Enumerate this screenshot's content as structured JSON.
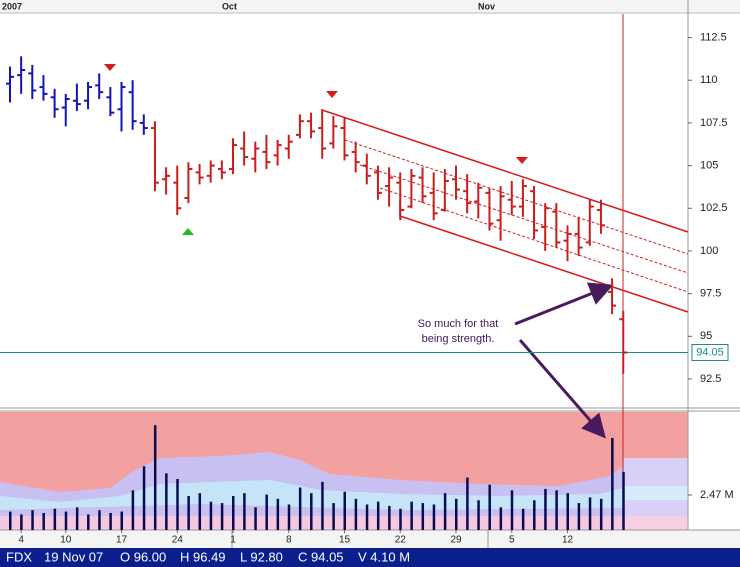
{
  "chart_data": {
    "type": "ohlc",
    "period_labels": [
      "2007",
      "Oct",
      "Nov"
    ],
    "categories": [
      null,
      "4",
      null,
      null,
      null,
      "10",
      null,
      null,
      null,
      null,
      "17",
      null,
      null,
      null,
      null,
      "24",
      null,
      null,
      null,
      null,
      "1",
      null,
      null,
      null,
      null,
      "8",
      null,
      null,
      null,
      null,
      "15",
      null,
      null,
      null,
      null,
      "22",
      null,
      null,
      null,
      null,
      "29",
      null,
      null,
      null,
      null,
      "5",
      null,
      null,
      null,
      null,
      "12",
      null,
      null,
      null,
      null,
      null
    ],
    "open": [
      109.8,
      110.3,
      110.4,
      109.6,
      109.0,
      108.4,
      108.8,
      108.8,
      109.7,
      109.0,
      108.3,
      109.3,
      107.5,
      107.2,
      104.2,
      104.0,
      103.1,
      104.6,
      104.4,
      104.8,
      104.8,
      106.0,
      105.4,
      105.8,
      105.6,
      106.0,
      106.8,
      107.6,
      107.2,
      106.3,
      107.2,
      105.8,
      105.0,
      104.6,
      103.8,
      104.0,
      102.6,
      104.3,
      103.4,
      102.4,
      104.2,
      103.5,
      102.9,
      103.4,
      101.8,
      103.0,
      102.6,
      103.5,
      101.4,
      102.3,
      100.6,
      101.0,
      100.5,
      102.4,
      97.6,
      96.0
    ],
    "high": [
      110.8,
      111.4,
      110.9,
      110.3,
      109.5,
      109.2,
      109.8,
      109.9,
      110.4,
      109.6,
      109.9,
      110.0,
      108.0,
      107.6,
      104.9,
      105.0,
      105.2,
      105.1,
      105.3,
      105.3,
      106.6,
      107.0,
      106.4,
      106.8,
      106.5,
      106.8,
      108.0,
      108.1,
      108.3,
      107.9,
      107.8,
      106.4,
      105.7,
      105.0,
      104.9,
      104.6,
      104.8,
      104.9,
      104.6,
      104.8,
      105.0,
      104.5,
      104.0,
      103.7,
      103.8,
      104.1,
      104.2,
      103.8,
      102.8,
      102.8,
      101.5,
      102.0,
      103.0,
      103.0,
      98.4,
      96.49
    ],
    "low": [
      108.7,
      109.2,
      108.9,
      108.8,
      107.8,
      107.3,
      108.2,
      108.3,
      108.9,
      107.9,
      107.0,
      107.1,
      106.8,
      103.5,
      103.3,
      102.1,
      102.8,
      103.9,
      104.0,
      104.2,
      104.5,
      105.0,
      104.6,
      104.8,
      105.0,
      105.4,
      106.6,
      106.6,
      105.4,
      106.0,
      105.3,
      104.6,
      103.9,
      103.0,
      102.6,
      101.8,
      102.5,
      102.8,
      101.8,
      102.3,
      103.0,
      102.2,
      101.9,
      101.2,
      100.6,
      102.1,
      102.0,
      100.7,
      100.0,
      100.2,
      99.4,
      99.7,
      100.3,
      101.0,
      96.3,
      92.8
    ],
    "close": [
      110.2,
      110.6,
      109.4,
      109.2,
      108.3,
      108.9,
      108.6,
      109.6,
      109.3,
      108.1,
      109.6,
      107.6,
      107.2,
      104.0,
      104.4,
      102.5,
      104.8,
      104.3,
      105.0,
      104.6,
      106.2,
      105.5,
      106.0,
      105.2,
      106.2,
      106.4,
      107.6,
      107.0,
      106.0,
      107.3,
      105.6,
      105.2,
      104.4,
      103.4,
      104.3,
      102.4,
      104.4,
      103.2,
      102.2,
      104.1,
      103.6,
      102.8,
      103.7,
      101.6,
      103.2,
      102.6,
      103.8,
      101.2,
      102.5,
      100.5,
      101.0,
      100.2,
      102.6,
      101.5,
      96.8,
      94.05
    ],
    "bar_colors": [
      "#1414b4",
      "#1414b4",
      "#1414b4",
      "#1414b4",
      "#1414b4",
      "#1414b4",
      "#1414b4",
      "#1414b4",
      "#1414b4",
      "#1414b4",
      "#1414b4",
      "#1414b4",
      "#1414b4",
      "#c81e1e",
      "#c81e1e",
      "#c81e1e",
      "#c81e1e",
      "#c81e1e",
      "#c81e1e",
      "#c81e1e",
      "#c81e1e",
      "#c81e1e",
      "#c81e1e",
      "#c81e1e",
      "#c81e1e",
      "#c81e1e",
      "#c81e1e",
      "#c81e1e",
      "#c81e1e",
      "#c81e1e",
      "#c81e1e",
      "#c81e1e",
      "#c81e1e",
      "#c81e1e",
      "#c81e1e",
      "#c81e1e",
      "#c81e1e",
      "#c81e1e",
      "#c81e1e",
      "#c81e1e",
      "#c81e1e",
      "#c81e1e",
      "#c81e1e",
      "#c81e1e",
      "#c81e1e",
      "#c81e1e",
      "#c81e1e",
      "#c81e1e",
      "#c81e1e",
      "#c81e1e",
      "#c81e1e",
      "#c81e1e",
      "#c81e1e",
      "#c81e1e",
      "#c81e1e",
      "#c81e1e"
    ],
    "ylim": [
      90.8,
      114.7
    ],
    "yticks": [
      112.5,
      110,
      107.5,
      105,
      102.5,
      100,
      97.5,
      95,
      92.5
    ],
    "last_price_color": "#1a8a8a",
    "annotation": [
      "So much for that",
      "being strength."
    ],
    "volume": {
      "values": [
        1.3,
        1.1,
        1.4,
        1.2,
        1.5,
        1.3,
        1.6,
        1.1,
        1.4,
        1.2,
        1.3,
        2.8,
        4.5,
        7.4,
        4.0,
        3.6,
        2.4,
        2.6,
        2.0,
        1.9,
        2.4,
        2.6,
        1.6,
        2.5,
        2.2,
        1.8,
        3.0,
        2.6,
        3.4,
        1.9,
        2.7,
        2.2,
        1.8,
        2.0,
        1.7,
        1.5,
        2.0,
        1.9,
        1.8,
        2.6,
        2.2,
        3.7,
        2.1,
        3.2,
        1.6,
        2.8,
        1.5,
        2.1,
        2.9,
        2.8,
        2.6,
        1.9,
        2.3,
        2.2,
        6.5,
        4.1
      ],
      "color": "#0a0a50",
      "ylim": [
        0,
        8.33
      ],
      "yticks": [
        {
          "value": 2.47,
          "label": "2.47 M"
        }
      ]
    },
    "status": [
      "FDX",
      "19 Nov 07",
      "O 96.00",
      "H 96.49",
      "L 92.80",
      "C 94.05",
      "V 4.10 M"
    ]
  }
}
